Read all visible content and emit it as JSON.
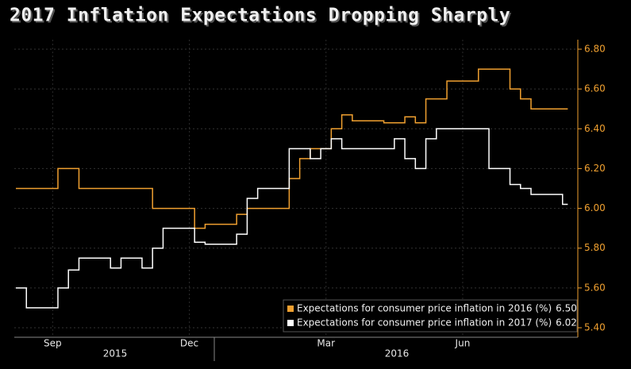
{
  "chart_data": {
    "type": "step-line",
    "title": "2017 Inflation Expectations Dropping Sharply",
    "categories": [
      null,
      null,
      null,
      "Sep",
      null,
      null,
      null,
      null,
      null,
      null,
      null,
      null,
      null,
      null,
      null,
      null,
      "Dec",
      null,
      null,
      null,
      null,
      null,
      null,
      null,
      null,
      null,
      null,
      null,
      null,
      "Mar",
      null,
      null,
      null,
      null,
      null,
      null,
      null,
      null,
      null,
      null,
      null,
      null,
      "Jun",
      null,
      null,
      null,
      null,
      null,
      null,
      null,
      null,
      null,
      null
    ],
    "x_group_labels": [
      "2015",
      "2016"
    ],
    "series": [
      {
        "name": "Expectations for consumer price inflation in 2016 (%)",
        "color": "#f0a030",
        "values": [
          6.1,
          6.1,
          6.1,
          6.1,
          6.2,
          6.2,
          6.1,
          6.1,
          6.1,
          6.1,
          6.1,
          6.1,
          6.1,
          6.0,
          6.0,
          6.0,
          6.0,
          5.9,
          5.92,
          5.92,
          5.92,
          5.97,
          6.0,
          6.0,
          6.0,
          6.0,
          6.15,
          6.25,
          6.3,
          6.3,
          6.4,
          6.47,
          6.44,
          6.44,
          6.44,
          6.43,
          6.43,
          6.46,
          6.43,
          6.55,
          6.55,
          6.64,
          6.64,
          6.64,
          6.7,
          6.7,
          6.7,
          6.6,
          6.55,
          6.5,
          6.5,
          6.5,
          6.5
        ]
      },
      {
        "name": "Expectations for consumer price inflation in 2017 (%)",
        "color": "#ffffff",
        "values": [
          5.6,
          5.5,
          5.5,
          5.5,
          5.6,
          5.69,
          5.75,
          5.75,
          5.75,
          5.7,
          5.75,
          5.75,
          5.7,
          5.8,
          5.9,
          5.9,
          5.9,
          5.83,
          5.82,
          5.82,
          5.82,
          5.87,
          6.05,
          6.1,
          6.1,
          6.1,
          6.3,
          6.3,
          6.25,
          6.3,
          6.35,
          6.3,
          6.3,
          6.3,
          6.3,
          6.3,
          6.35,
          6.25,
          6.2,
          6.35,
          6.4,
          6.4,
          6.4,
          6.4,
          6.4,
          6.2,
          6.2,
          6.12,
          6.1,
          6.07,
          6.07,
          6.07,
          6.02
        ]
      }
    ],
    "ylim": [
      5.4,
      6.8
    ],
    "yticks": [
      {
        "value": 5.4,
        "label": "5.40"
      },
      {
        "value": 5.6,
        "label": "5.60"
      },
      {
        "value": 5.8,
        "label": "5.80"
      },
      {
        "value": 6.0,
        "label": "6.00"
      },
      {
        "value": 6.2,
        "label": "6.20"
      },
      {
        "value": 6.4,
        "label": "6.40"
      },
      {
        "value": 6.6,
        "label": "6.60"
      },
      {
        "value": 6.8,
        "label": "6.80"
      }
    ],
    "grid": true,
    "legend": "bottom-right"
  }
}
